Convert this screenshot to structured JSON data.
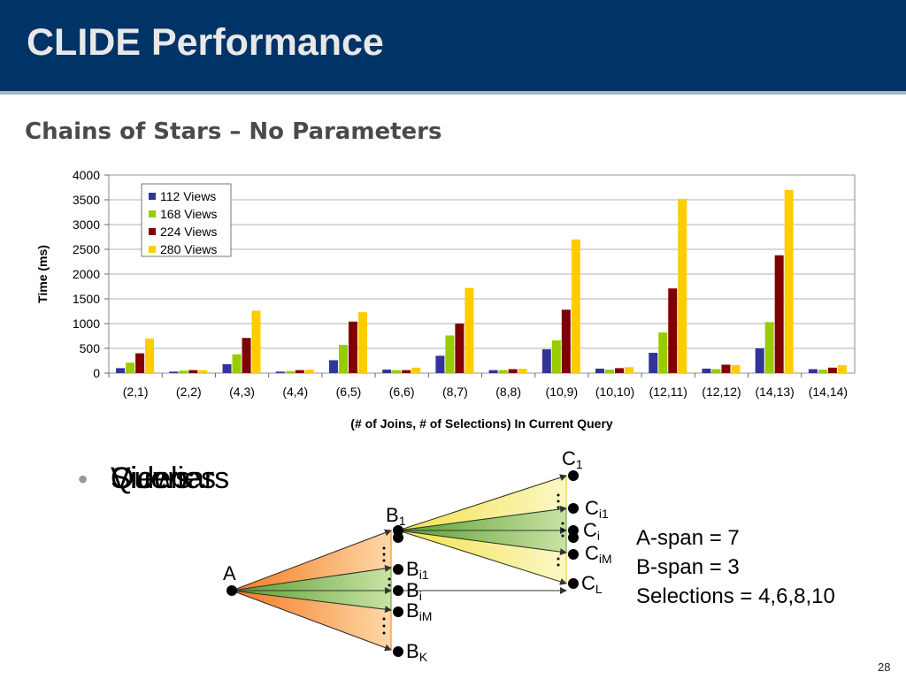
{
  "slide": {
    "title": "CLIDE Performance",
    "subtitle": "Chains of Stars – No Parameters",
    "page_number": "28",
    "bullet_overlaps": [
      "Queries",
      "Views",
      "Sidebars"
    ],
    "stats": [
      "A-span = 7",
      "B-span = 3",
      "Selections = 4,6,8,10"
    ],
    "colors": {
      "title_bar": "#003366",
      "orange": "#f7941d",
      "green": "#7ab648",
      "yellow": "#f7ee7f"
    }
  },
  "diagram": {
    "node_a": "A",
    "b_labels": [
      {
        "id": "b1",
        "base": "B",
        "sub": "1"
      },
      {
        "id": "bi1",
        "base": "B",
        "sub": "i1"
      },
      {
        "id": "bi",
        "base": "B",
        "sub": "i"
      },
      {
        "id": "biM",
        "base": "B",
        "sub": "iM"
      },
      {
        "id": "bK",
        "base": "B",
        "sub": "K"
      }
    ],
    "c_labels": [
      {
        "id": "c1",
        "base": "C",
        "sub": "1"
      },
      {
        "id": "ci1",
        "base": "C",
        "sub": "i1"
      },
      {
        "id": "ci",
        "base": "C",
        "sub": "i"
      },
      {
        "id": "ciM",
        "base": "C",
        "sub": "iM"
      },
      {
        "id": "cL",
        "base": "C",
        "sub": "L"
      }
    ]
  },
  "chart_data": {
    "type": "bar",
    "title": "",
    "xlabel": "(# of Joins, # of Selections) In Current Query",
    "ylabel": "Time (ms)",
    "ylim": [
      0,
      4000
    ],
    "yticks": [
      0,
      500,
      1000,
      1500,
      2000,
      2500,
      3000,
      3500,
      4000
    ],
    "grid": true,
    "legend_position": "top-left",
    "categories": [
      "(2,1)",
      "(2,2)",
      "(4,3)",
      "(4,4)",
      "(6,5)",
      "(6,6)",
      "(8,7)",
      "(8,8)",
      "(10,9)",
      "(10,10)",
      "(12,11)",
      "(12,12)",
      "(14,13)",
      "(14,14)"
    ],
    "series": [
      {
        "name": "112 Views",
        "color": "#333399",
        "values": [
          100,
          30,
          180,
          30,
          260,
          70,
          350,
          60,
          480,
          90,
          410,
          90,
          500,
          80
        ]
      },
      {
        "name": "168 Views",
        "color": "#99cc00",
        "values": [
          210,
          50,
          380,
          40,
          570,
          60,
          760,
          60,
          660,
          70,
          820,
          80,
          1030,
          70
        ]
      },
      {
        "name": "224 Views",
        "color": "#800000",
        "values": [
          400,
          60,
          710,
          60,
          1040,
          60,
          1000,
          80,
          1280,
          100,
          1710,
          170,
          2380,
          110
        ]
      },
      {
        "name": "280 Views",
        "color": "#ffcc00",
        "values": [
          700,
          60,
          1260,
          70,
          1230,
          110,
          1720,
          90,
          2700,
          120,
          3520,
          160,
          3700,
          160
        ]
      }
    ]
  }
}
